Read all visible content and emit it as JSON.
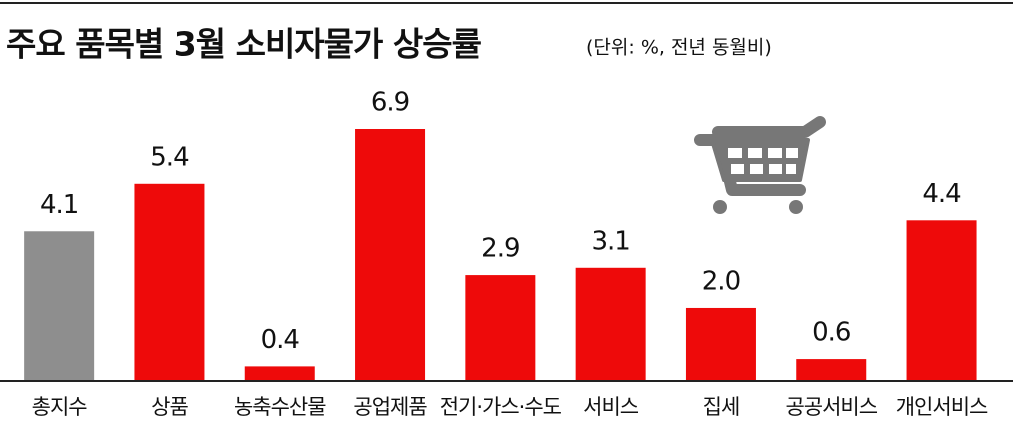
{
  "chart_data": {
    "type": "bar",
    "title": "주요 품목별 3월 소비자물가 상승률",
    "subtitle": "(단위: %, 전년 동월비)",
    "categories": [
      "총지수",
      "상품",
      "농축수산물",
      "공업제품",
      "전기·가스·수도",
      "서비스",
      "집세",
      "공공서비스",
      "개인서비스"
    ],
    "values": [
      4.1,
      5.4,
      0.4,
      6.9,
      2.9,
      3.1,
      2.0,
      0.6,
      4.4
    ],
    "value_labels": [
      "4.1",
      "5.4",
      "0.4",
      "6.9",
      "2.9",
      "3.1",
      "2.0",
      "0.6",
      "4.4"
    ],
    "colors": [
      "#8e8e8e",
      "#ee0a0a",
      "#ee0a0a",
      "#ee0a0a",
      "#ee0a0a",
      "#ee0a0a",
      "#ee0a0a",
      "#ee0a0a",
      "#ee0a0a"
    ]
  }
}
